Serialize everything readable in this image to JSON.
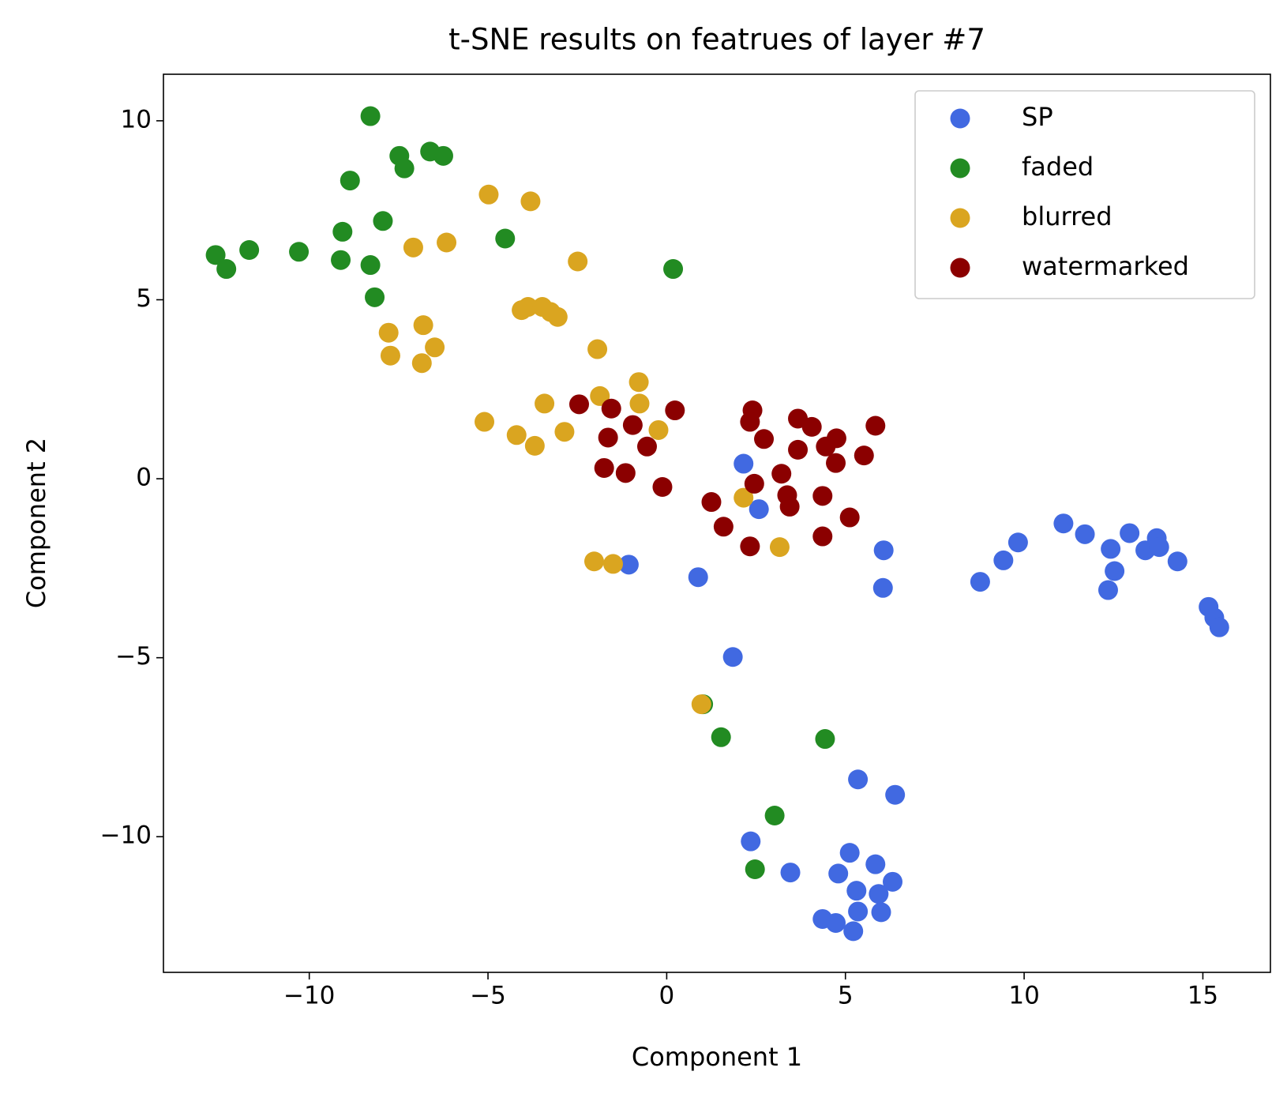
{
  "chart_data": {
    "type": "scatter",
    "title": "t-SNE results on featrues of layer #7",
    "xlabel": "Component 1",
    "ylabel": "Component 2",
    "xlim": [
      -14.08,
      16.89
    ],
    "ylim": [
      -13.79,
      11.3
    ],
    "xticks": [
      {
        "value": -10,
        "label": "−10"
      },
      {
        "value": -5,
        "label": "−5"
      },
      0,
      5,
      10,
      15
    ],
    "yticks": [
      {
        "value": -10,
        "label": "−10"
      },
      {
        "value": -5,
        "label": "−5"
      },
      0,
      5,
      10
    ],
    "legend": "upper right",
    "series": [
      {
        "name": "SP",
        "color": "#4169e1",
        "x": [
          2.15,
          2.58,
          -1.06,
          0.88,
          6.07,
          6.05,
          1.85,
          8.77,
          9.42,
          9.83,
          11.1,
          11.7,
          12.42,
          12.53,
          12.35,
          12.95,
          13.39,
          13.71,
          13.78,
          14.29,
          15.16,
          15.32,
          15.46,
          5.35,
          6.39,
          2.35,
          3.46,
          5.12,
          4.8,
          5.84,
          6.32,
          5.93,
          5.31,
          6.0,
          5.35,
          4.36,
          4.73,
          5.22
        ],
        "y": [
          0.42,
          -0.85,
          -2.4,
          -2.75,
          -2.0,
          -3.05,
          -4.98,
          -2.88,
          -2.28,
          -1.78,
          -1.25,
          -1.55,
          -1.96,
          -2.58,
          -3.11,
          -1.52,
          -2.0,
          -1.66,
          -1.91,
          -2.31,
          -3.58,
          -3.88,
          -4.15,
          -8.4,
          -8.83,
          -10.13,
          -11.0,
          -10.45,
          -11.03,
          -10.77,
          -11.26,
          -11.6,
          -11.51,
          -12.11,
          -12.09,
          -12.3,
          -12.41,
          -12.64
        ]
      },
      {
        "name": "faded",
        "color": "#228b22",
        "x": [
          -8.29,
          -7.48,
          -7.34,
          -6.62,
          -6.25,
          -8.86,
          -9.07,
          -7.94,
          -12.62,
          -12.32,
          -11.68,
          -10.29,
          -9.12,
          -8.29,
          -8.17,
          -4.52,
          0.18,
          1.02,
          1.52,
          4.43,
          3.02,
          2.47
        ],
        "y": [
          10.13,
          9.02,
          8.67,
          9.14,
          9.02,
          8.33,
          6.9,
          7.2,
          6.25,
          5.86,
          6.39,
          6.34,
          6.11,
          5.97,
          5.07,
          6.71,
          5.86,
          -6.3,
          -7.22,
          -7.27,
          -9.41,
          -10.91
        ]
      },
      {
        "name": "blurred",
        "color": "#daa520",
        "x": [
          -4.98,
          -3.81,
          -7.09,
          -6.16,
          -2.49,
          -4.06,
          -3.88,
          -3.48,
          -3.25,
          -3.05,
          -7.78,
          -6.81,
          -7.73,
          -6.49,
          -6.85,
          -1.94,
          -0.78,
          -1.87,
          -3.42,
          -0.76,
          -5.1,
          -4.2,
          -2.86,
          -3.69,
          -0.23,
          2.15,
          3.16,
          -2.03,
          -1.5,
          0.97
        ],
        "y": [
          7.94,
          7.75,
          6.46,
          6.6,
          6.07,
          4.71,
          4.8,
          4.8,
          4.66,
          4.52,
          4.08,
          4.29,
          3.44,
          3.67,
          3.23,
          3.62,
          2.7,
          2.31,
          2.1,
          2.1,
          1.59,
          1.22,
          1.31,
          0.92,
          1.36,
          -0.53,
          -1.91,
          -2.31,
          -2.38,
          -6.3
        ]
      },
      {
        "name": "watermarked",
        "color": "#8b0000",
        "x": [
          -2.45,
          -1.55,
          0.23,
          -0.95,
          -1.64,
          -0.55,
          -1.75,
          -1.15,
          -0.12,
          2.4,
          2.33,
          2.72,
          3.67,
          4.06,
          3.67,
          4.75,
          4.45,
          5.84,
          4.73,
          5.52,
          3.21,
          2.45,
          1.25,
          3.37,
          3.44,
          4.36,
          5.12,
          1.59,
          2.33,
          4.36
        ],
        "y": [
          2.08,
          1.96,
          1.91,
          1.5,
          1.15,
          0.9,
          0.3,
          0.16,
          -0.23,
          1.91,
          1.59,
          1.11,
          1.68,
          1.45,
          0.81,
          1.13,
          0.9,
          1.48,
          0.44,
          0.65,
          0.14,
          -0.14,
          -0.65,
          -0.46,
          -0.78,
          -0.48,
          -1.08,
          -1.34,
          -1.89,
          -1.61
        ]
      }
    ]
  }
}
